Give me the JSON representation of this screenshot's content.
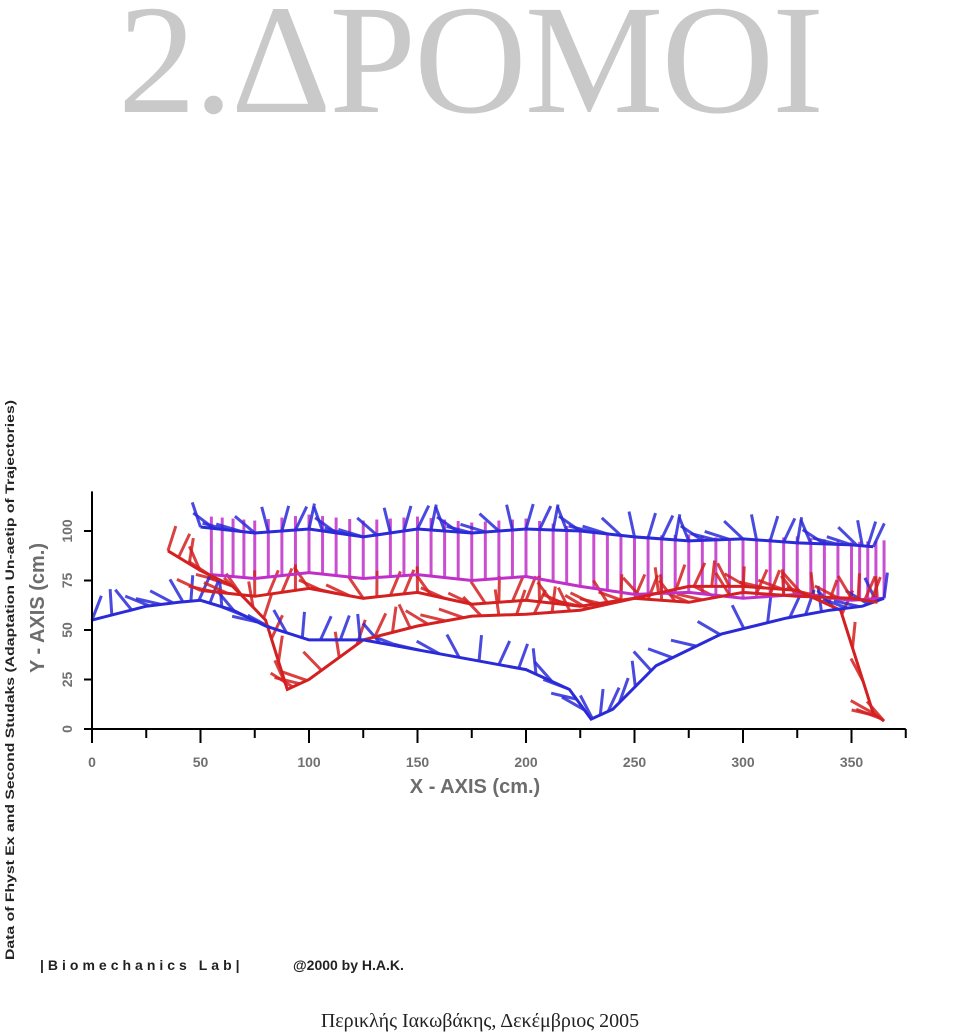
{
  "slide": {
    "title": "2.ΔΡΟΜΟΙ",
    "footer": "Περικλής Ιακωβάκης, Δεκέμβριος 2005"
  },
  "chart_data": {
    "type": "line",
    "title": "",
    "side_caption": "Data of Fhyst Ex and Second Studaks (Adaptation Un-aetip of Trajectories)",
    "xlabel": "X - AXIS (cm.)",
    "ylabel": "Y - AXIS (cm.)",
    "xlim": [
      0,
      375
    ],
    "ylim": [
      0,
      120
    ],
    "xticks": [
      0,
      50,
      100,
      150,
      200,
      250,
      300,
      350
    ],
    "yticks": [
      0,
      25,
      50,
      75,
      100
    ],
    "grid": false,
    "legend": "none",
    "credit_left": "|Biomechanics Lab|",
    "credit_right": "@2000 by H.A.K.",
    "colors": {
      "red": "#d42020",
      "blue": "#2a2ad8",
      "magenta": "#c030c8",
      "title": "#c9c9c9"
    },
    "series": [
      {
        "color_key": "magenta",
        "x": [
          55,
          75,
          100,
          125,
          150,
          175,
          200,
          225,
          250,
          275,
          300,
          325,
          350,
          365
        ],
        "y": [
          78,
          76,
          79,
          76,
          78,
          75,
          77,
          72,
          68,
          69,
          66,
          68,
          65,
          66
        ]
      },
      {
        "color_key": "red",
        "x": [
          35,
          50,
          65,
          80,
          90,
          100,
          125,
          150,
          175,
          200,
          225,
          250,
          275,
          300,
          325,
          345,
          360,
          365
        ],
        "y": [
          90,
          80,
          72,
          55,
          20,
          25,
          45,
          52,
          57,
          58,
          60,
          66,
          72,
          72,
          70,
          60,
          8,
          4
        ]
      },
      {
        "color_key": "blue",
        "x": [
          0,
          25,
          40,
          50,
          65,
          80,
          100,
          125,
          150,
          175,
          200,
          220,
          230,
          240,
          260,
          290,
          320,
          340,
          355,
          365
        ],
        "y": [
          55,
          62,
          64,
          65,
          60,
          52,
          45,
          45,
          40,
          35,
          30,
          20,
          5,
          10,
          32,
          48,
          56,
          60,
          62,
          66
        ]
      },
      {
        "color_key": "blue",
        "x": [
          50,
          75,
          100,
          125,
          150,
          175,
          200,
          225,
          250,
          275,
          300,
          325,
          350,
          360
        ],
        "y": [
          102,
          99,
          101,
          97,
          101,
          99,
          101,
          100,
          97,
          95,
          96,
          94,
          93,
          92
        ]
      },
      {
        "color_key": "red",
        "x": [
          50,
          75,
          100,
          125,
          150,
          175,
          200,
          225,
          250,
          275,
          300,
          325,
          350,
          362
        ],
        "y": [
          70,
          67,
          71,
          66,
          69,
          63,
          65,
          62,
          66,
          64,
          69,
          67,
          66,
          64
        ]
      }
    ]
  }
}
